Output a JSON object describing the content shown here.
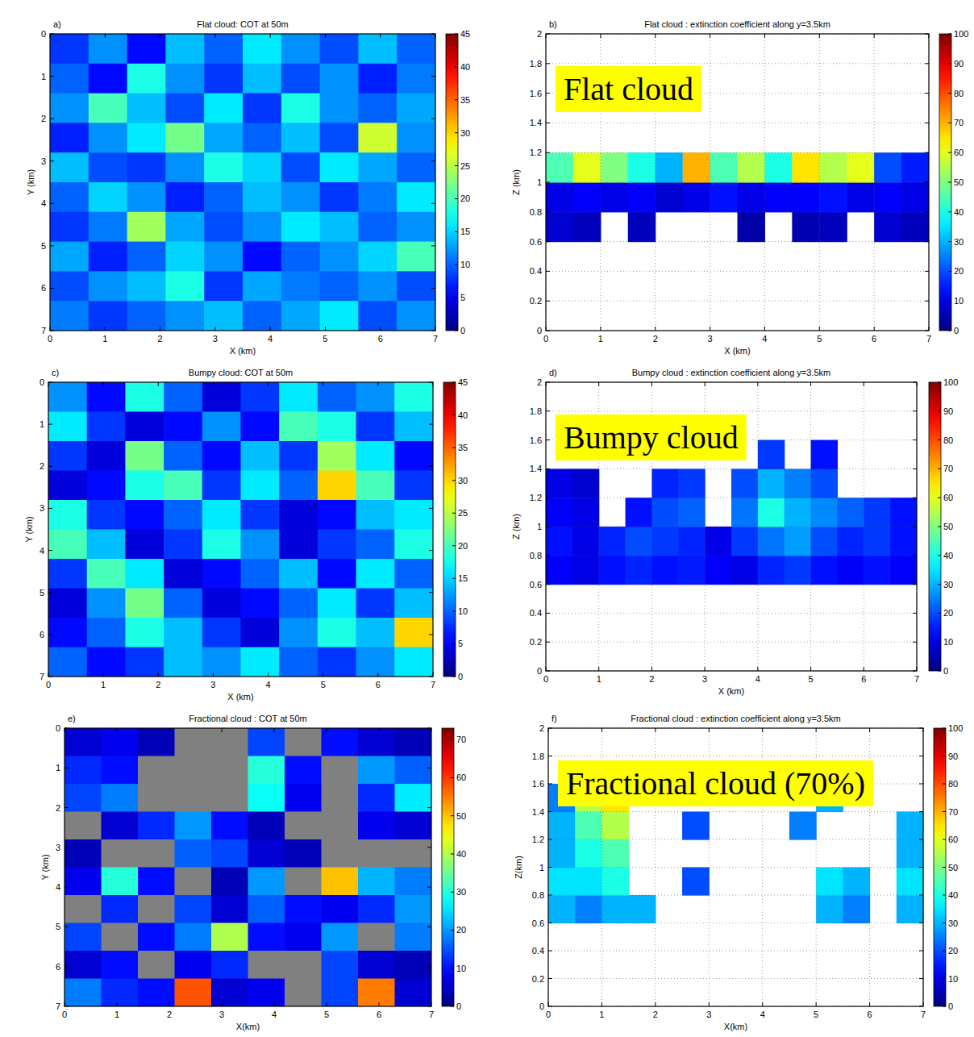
{
  "chart_data": [
    {
      "type": "heatmap",
      "panel_label": "a)",
      "title": "Flat cloud: COT at 50m",
      "xlabel": "X (km)",
      "ylabel": "Y (km)",
      "xlim": [
        0,
        7
      ],
      "ylim": [
        7,
        0
      ],
      "xticks": [
        0,
        1,
        2,
        3,
        4,
        5,
        6,
        7
      ],
      "yticks": [
        0,
        1,
        2,
        3,
        4,
        5,
        6,
        7
      ],
      "grid": false,
      "x_edges": [
        0,
        0.7,
        1.4,
        2.1,
        2.8,
        3.5,
        4.2,
        4.9,
        5.6,
        6.3,
        7
      ],
      "y_edges": [
        0,
        0.7,
        1.4,
        2.1,
        2.8,
        3.5,
        4.2,
        4.9,
        5.6,
        6.3,
        7
      ],
      "values": [
        [
          8,
          12,
          6,
          14,
          10,
          16,
          12,
          9,
          14,
          10
        ],
        [
          10,
          6,
          18,
          12,
          8,
          14,
          9,
          12,
          7,
          11
        ],
        [
          12,
          20,
          14,
          9,
          16,
          8,
          18,
          12,
          10,
          13
        ],
        [
          7,
          12,
          16,
          22,
          13,
          10,
          14,
          9,
          26,
          12
        ],
        [
          14,
          9,
          8,
          12,
          18,
          15,
          9,
          16,
          13,
          10
        ],
        [
          10,
          15,
          12,
          7,
          10,
          14,
          12,
          8,
          11,
          16
        ],
        [
          8,
          11,
          24,
          13,
          9,
          12,
          16,
          14,
          10,
          12
        ],
        [
          13,
          7,
          10,
          15,
          12,
          6,
          10,
          12,
          15,
          20
        ],
        [
          9,
          12,
          14,
          18,
          8,
          13,
          11,
          10,
          12,
          9
        ],
        [
          11,
          8,
          10,
          12,
          14,
          10,
          13,
          16,
          9,
          12
        ]
      ],
      "colorbar": {
        "range": [
          0,
          45
        ],
        "ticks": [
          0,
          5,
          10,
          15,
          20,
          25,
          30,
          35,
          40,
          45
        ]
      }
    },
    {
      "type": "heatmap",
      "panel_label": "b)",
      "title": "Flat cloud : extinction coefficient along y=3.5km",
      "xlabel": "X (km)",
      "ylabel": "Z (km)",
      "xlim": [
        0,
        7
      ],
      "ylim": [
        0,
        2
      ],
      "xticks": [
        0,
        1,
        2,
        3,
        4,
        5,
        6,
        7
      ],
      "yticks": [
        0,
        0.2,
        0.4,
        0.6,
        0.8,
        1,
        1.2,
        1.4,
        1.6,
        1.8,
        2
      ],
      "grid": true,
      "x_edges": [
        0,
        0.5,
        1,
        1.5,
        2,
        2.5,
        3,
        3.5,
        4,
        4.5,
        5,
        5.5,
        6,
        6.5,
        7
      ],
      "y_edges": [
        0,
        0.2,
        0.4,
        0.6,
        0.8,
        1,
        1.2,
        1.4,
        1.6,
        1.8,
        2
      ],
      "values": [
        [
          null,
          null,
          null,
          null,
          null,
          null,
          null,
          null,
          null,
          null,
          null,
          null,
          null,
          null
        ],
        [
          null,
          null,
          null,
          null,
          null,
          null,
          null,
          null,
          null,
          null,
          null,
          null,
          null,
          null
        ],
        [
          null,
          null,
          null,
          null,
          null,
          null,
          null,
          null,
          null,
          null,
          null,
          null,
          null,
          null
        ],
        [
          8,
          6,
          null,
          6,
          null,
          null,
          null,
          4,
          null,
          5,
          6,
          null,
          8,
          6
        ],
        [
          10,
          12,
          10,
          12,
          8,
          10,
          14,
          10,
          12,
          12,
          14,
          10,
          12,
          10
        ],
        [
          45,
          60,
          50,
          40,
          30,
          70,
          45,
          55,
          40,
          65,
          55,
          60,
          20,
          15
        ],
        [
          null,
          null,
          null,
          null,
          null,
          null,
          null,
          null,
          null,
          null,
          null,
          null,
          null,
          null
        ],
        [
          null,
          null,
          null,
          null,
          null,
          null,
          null,
          null,
          null,
          null,
          null,
          null,
          null,
          null
        ],
        [
          null,
          null,
          null,
          null,
          null,
          null,
          null,
          null,
          null,
          null,
          null,
          null,
          null,
          null
        ],
        [
          null,
          null,
          null,
          null,
          null,
          null,
          null,
          null,
          null,
          null,
          null,
          null,
          null,
          null
        ]
      ],
      "colorbar": {
        "range": [
          0,
          100
        ],
        "ticks": [
          0,
          10,
          20,
          30,
          40,
          50,
          60,
          70,
          80,
          90,
          100
        ]
      }
    },
    {
      "type": "heatmap",
      "panel_label": "c)",
      "title": "Bumpy cloud: COT at 50m",
      "xlabel": "X (km)",
      "ylabel": "Y (km)",
      "xlim": [
        0,
        7
      ],
      "ylim": [
        7,
        0
      ],
      "xticks": [
        0,
        1,
        2,
        3,
        4,
        5,
        6,
        7
      ],
      "yticks": [
        0,
        1,
        2,
        3,
        4,
        5,
        6,
        7
      ],
      "grid": false,
      "x_edges": [
        0,
        0.7,
        1.4,
        2.1,
        2.8,
        3.5,
        4.2,
        4.9,
        5.6,
        6.3,
        7
      ],
      "y_edges": [
        0,
        0.7,
        1.4,
        2.1,
        2.8,
        3.5,
        4.2,
        4.9,
        5.6,
        6.3,
        7
      ],
      "values": [
        [
          12,
          6,
          18,
          10,
          4,
          8,
          16,
          10,
          12,
          18
        ],
        [
          16,
          8,
          4,
          6,
          12,
          6,
          20,
          18,
          8,
          14
        ],
        [
          8,
          4,
          22,
          10,
          6,
          14,
          8,
          24,
          16,
          6
        ],
        [
          4,
          6,
          18,
          20,
          8,
          16,
          10,
          30,
          20,
          8
        ],
        [
          18,
          8,
          6,
          10,
          16,
          8,
          4,
          6,
          14,
          16
        ],
        [
          20,
          14,
          4,
          8,
          18,
          12,
          4,
          8,
          10,
          18
        ],
        [
          8,
          20,
          16,
          4,
          6,
          10,
          14,
          6,
          16,
          10
        ],
        [
          4,
          12,
          22,
          10,
          4,
          6,
          10,
          16,
          8,
          14
        ],
        [
          6,
          10,
          18,
          14,
          8,
          4,
          12,
          18,
          14,
          30
        ],
        [
          10,
          6,
          8,
          14,
          12,
          16,
          10,
          8,
          12,
          16
        ]
      ],
      "colorbar": {
        "range": [
          0,
          45
        ],
        "ticks": [
          0,
          5,
          10,
          15,
          20,
          25,
          30,
          35,
          40,
          45
        ]
      }
    },
    {
      "type": "heatmap",
      "panel_label": "d)",
      "title": "Bumpy cloud : extinction coefficient along y=3.5km",
      "xlabel": "X (km)",
      "ylabel": "Z (km)",
      "xlim": [
        0,
        7
      ],
      "ylim": [
        0,
        2
      ],
      "xticks": [
        0,
        1,
        2,
        3,
        4,
        5,
        6,
        7
      ],
      "yticks": [
        0,
        0.2,
        0.4,
        0.6,
        0.8,
        1,
        1.2,
        1.4,
        1.6,
        1.8,
        2
      ],
      "grid": true,
      "x_edges": [
        0,
        0.5,
        1,
        1.5,
        2,
        2.5,
        3,
        3.5,
        4,
        4.5,
        5,
        5.5,
        6,
        6.5,
        7
      ],
      "y_edges": [
        0,
        0.2,
        0.4,
        0.6,
        0.8,
        1,
        1.2,
        1.4,
        1.6,
        1.8,
        2
      ],
      "values": [
        [
          null,
          null,
          null,
          null,
          null,
          null,
          null,
          null,
          null,
          null,
          null,
          null,
          null,
          null
        ],
        [
          null,
          null,
          null,
          null,
          null,
          null,
          null,
          null,
          null,
          null,
          null,
          null,
          null,
          null
        ],
        [
          null,
          null,
          null,
          null,
          null,
          null,
          null,
          null,
          null,
          null,
          null,
          null,
          null,
          null
        ],
        [
          12,
          10,
          14,
          16,
          14,
          15,
          12,
          10,
          16,
          18,
          14,
          12,
          14,
          12
        ],
        [
          14,
          10,
          16,
          20,
          18,
          16,
          10,
          18,
          24,
          28,
          20,
          16,
          18,
          14
        ],
        [
          12,
          10,
          null,
          14,
          20,
          22,
          null,
          24,
          40,
          30,
          26,
          22,
          18,
          14
        ],
        [
          10,
          8,
          null,
          null,
          16,
          18,
          null,
          20,
          30,
          25,
          20,
          null,
          null,
          null
        ],
        [
          null,
          null,
          null,
          null,
          null,
          null,
          null,
          null,
          18,
          null,
          14,
          null,
          null,
          null
        ],
        [
          null,
          null,
          null,
          null,
          null,
          null,
          null,
          null,
          null,
          null,
          null,
          null,
          null,
          null
        ],
        [
          null,
          null,
          null,
          null,
          null,
          null,
          null,
          null,
          null,
          null,
          null,
          null,
          null,
          null
        ]
      ],
      "colorbar": {
        "range": [
          0,
          100
        ],
        "ticks": [
          0,
          10,
          20,
          30,
          40,
          50,
          60,
          70,
          80,
          90,
          100
        ]
      }
    },
    {
      "type": "heatmap",
      "panel_label": "e)",
      "title": "Fractional cloud : COT at 50m",
      "xlabel": "X(km)",
      "ylabel": "Y (km)",
      "xlim": [
        0,
        7
      ],
      "ylim": [
        7,
        0
      ],
      "xticks": [
        0,
        1,
        2,
        3,
        4,
        5,
        6,
        7
      ],
      "yticks": [
        0,
        1,
        2,
        3,
        4,
        5,
        6,
        7
      ],
      "grid": false,
      "x_edges": [
        0,
        0.7,
        1.4,
        2.1,
        2.8,
        3.5,
        4.2,
        4.9,
        5.6,
        6.3,
        7
      ],
      "y_edges": [
        0,
        0.7,
        1.4,
        2.1,
        2.8,
        3.5,
        4.2,
        4.9,
        5.6,
        6.3,
        7
      ],
      "values": [
        [
          6,
          8,
          4,
          0,
          0,
          14,
          0,
          10,
          6,
          4
        ],
        [
          12,
          10,
          0,
          0,
          0,
          30,
          10,
          0,
          20,
          16
        ],
        [
          14,
          18,
          0,
          0,
          0,
          28,
          8,
          0,
          12,
          26
        ],
        [
          0,
          6,
          12,
          20,
          10,
          4,
          0,
          0,
          8,
          6
        ],
        [
          4,
          0,
          0,
          16,
          14,
          6,
          4,
          0,
          0,
          0
        ],
        [
          8,
          30,
          10,
          0,
          4,
          20,
          0,
          50,
          22,
          18
        ],
        [
          0,
          12,
          0,
          14,
          6,
          16,
          10,
          8,
          12,
          20
        ],
        [
          14,
          0,
          10,
          18,
          40,
          10,
          8,
          20,
          0,
          18
        ],
        [
          6,
          10,
          0,
          8,
          12,
          0,
          0,
          14,
          6,
          4
        ],
        [
          18,
          12,
          10,
          58,
          6,
          8,
          0,
          14,
          55,
          6
        ]
      ],
      "colorbar": {
        "range": [
          0,
          73
        ],
        "ticks": [
          0,
          10,
          20,
          30,
          40,
          50,
          60,
          70
        ]
      }
    },
    {
      "type": "heatmap",
      "panel_label": "f)",
      "title": "Fractional cloud : extinction coefficient along y=3.5km",
      "xlabel": "X(km)",
      "ylabel": "Z(km)",
      "xlim": [
        0,
        7
      ],
      "ylim": [
        0,
        2
      ],
      "xticks": [
        0,
        1,
        2,
        3,
        4,
        5,
        6,
        7
      ],
      "yticks": [
        0,
        0.2,
        0.4,
        0.6,
        0.8,
        1,
        1.2,
        1.4,
        1.6,
        1.8,
        2
      ],
      "grid": true,
      "x_edges": [
        0,
        0.5,
        1,
        1.5,
        2,
        2.5,
        3,
        3.5,
        4,
        4.5,
        5,
        5.5,
        6,
        6.5,
        7
      ],
      "y_edges": [
        0,
        0.2,
        0.4,
        0.6,
        0.8,
        1,
        1.2,
        1.4,
        1.6,
        1.8,
        2
      ],
      "values": [
        [
          null,
          null,
          null,
          null,
          null,
          null,
          null,
          null,
          null,
          null,
          null,
          null,
          null,
          null
        ],
        [
          null,
          null,
          null,
          null,
          null,
          null,
          null,
          null,
          null,
          null,
          null,
          null,
          null,
          null
        ],
        [
          null,
          null,
          null,
          null,
          null,
          null,
          null,
          null,
          null,
          null,
          null,
          null,
          null,
          null
        ],
        [
          30,
          25,
          30,
          30,
          null,
          null,
          null,
          null,
          null,
          null,
          30,
          25,
          null,
          30
        ],
        [
          35,
          35,
          40,
          null,
          null,
          20,
          null,
          null,
          null,
          null,
          35,
          30,
          null,
          35
        ],
        [
          30,
          40,
          45,
          null,
          null,
          null,
          null,
          null,
          null,
          null,
          null,
          null,
          null,
          30
        ],
        [
          30,
          45,
          55,
          null,
          null,
          20,
          null,
          null,
          null,
          25,
          null,
          null,
          null,
          30
        ],
        [
          25,
          55,
          65,
          null,
          null,
          null,
          null,
          null,
          null,
          null,
          30,
          null,
          null,
          null
        ],
        [
          null,
          null,
          null,
          null,
          null,
          null,
          null,
          null,
          null,
          null,
          null,
          null,
          null,
          null
        ],
        [
          null,
          null,
          null,
          null,
          null,
          null,
          null,
          null,
          null,
          null,
          null,
          null,
          null,
          null
        ]
      ],
      "colorbar": {
        "range": [
          0,
          100
        ],
        "ticks": [
          0,
          10,
          20,
          30,
          40,
          50,
          60,
          70,
          80,
          90,
          100
        ]
      }
    }
  ],
  "annotations": [
    "Flat cloud",
    "Bumpy cloud",
    "Fractional cloud (70%)"
  ]
}
